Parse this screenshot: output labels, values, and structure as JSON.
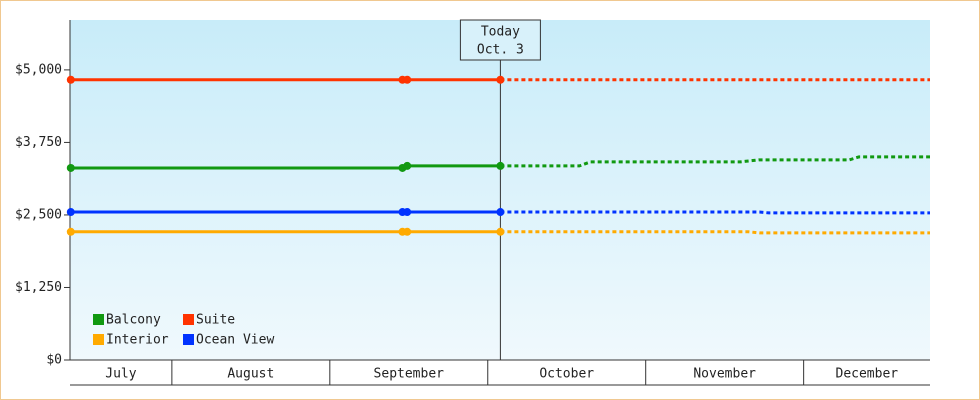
{
  "chart_data": {
    "type": "line",
    "categories": [
      "July",
      "August",
      "September",
      "October",
      "November",
      "December"
    ],
    "xlim": [
      0.355,
      5.8
    ],
    "ylim": [
      0,
      5860
    ],
    "yticks": [
      {
        "value": 0,
        "label": "$0"
      },
      {
        "value": 1250,
        "label": "$1,250"
      },
      {
        "value": 2500,
        "label": "$2,500"
      },
      {
        "value": 3750,
        "label": "$3,750"
      },
      {
        "value": 5000,
        "label": "$5,000"
      }
    ],
    "today": {
      "x": 3.08,
      "label": [
        "Today",
        "Oct. 3"
      ]
    },
    "series": [
      {
        "name": "Balcony",
        "color": "#119911",
        "x": [
          0.36,
          2.46,
          2.49,
          3.08
        ],
        "values": [
          3310,
          3310,
          3345,
          3345
        ],
        "forecast": {
          "x": [
            3.08,
            3.58,
            3.65,
            4.6,
            4.72,
            5.29,
            5.35,
            5.8
          ],
          "values": [
            3345,
            3345,
            3415,
            3415,
            3450,
            3450,
            3500,
            3500
          ]
        }
      },
      {
        "name": "Suite",
        "color": "#ff3300",
        "x": [
          0.36,
          2.46,
          2.49,
          3.08
        ],
        "values": [
          4830,
          4830,
          4830,
          4830
        ],
        "forecast": {
          "x": [
            3.08,
            5.8
          ],
          "values": [
            4830,
            4830
          ]
        }
      },
      {
        "name": "Interior",
        "color": "#ffaa00",
        "x": [
          0.36,
          2.46,
          2.49,
          3.08
        ],
        "values": [
          2210,
          2210,
          2210,
          2210
        ],
        "forecast": {
          "x": [
            3.08,
            4.65,
            4.72,
            5.8
          ],
          "values": [
            2210,
            2210,
            2190,
            2190
          ]
        }
      },
      {
        "name": "Ocean View",
        "color": "#0033ff",
        "x": [
          0.36,
          2.46,
          2.49,
          3.08
        ],
        "values": [
          2550,
          2550,
          2550,
          2550
        ],
        "forecast": {
          "x": [
            3.08,
            4.72,
            4.78,
            5.8
          ],
          "values": [
            2550,
            2550,
            2535,
            2535
          ]
        }
      }
    ]
  }
}
